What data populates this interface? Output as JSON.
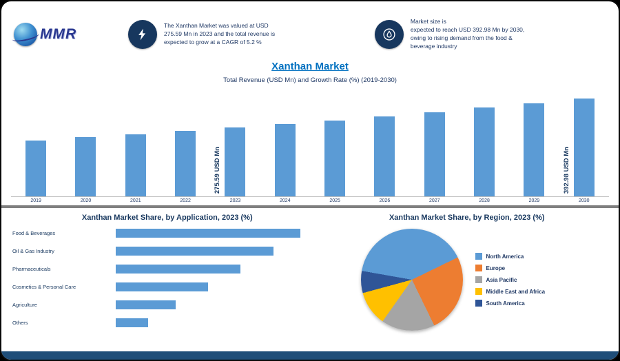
{
  "header": {
    "logo_text": "MMR",
    "callouts": [
      {
        "icon": "lightning-icon",
        "lines": [
          "The Xanthan Market was valued at USD",
          "275.59 Mn in 2023 and the total revenue is",
          "expected to grow at a CAGR of 5.2 %"
        ]
      },
      {
        "icon": "droplet-icon",
        "lines": [
          "Market size is",
          "expected to reach USD 392.98 Mn by 2030,",
          "owing to rising demand from the food &",
          "beverage industry"
        ]
      }
    ]
  },
  "title": {
    "main": "Xanthan Market",
    "subtitle": "Total Revenue (USD Mn) and Growth Rate (%) (2019-2030)"
  },
  "chart_data": [
    {
      "type": "bar",
      "title": "Xanthan Market Total Revenue (USD Mn)",
      "categories": [
        "2019",
        "2020",
        "2021",
        "2022",
        "2023",
        "2024",
        "2025",
        "2026",
        "2027",
        "2028",
        "2029",
        "2030"
      ],
      "values": [
        224.9,
        236.6,
        248.9,
        261.9,
        275.59,
        289.9,
        305.0,
        320.9,
        337.6,
        355.2,
        373.6,
        392.98
      ],
      "bar_color": "#5B9BD5",
      "ylim": [
        0,
        420
      ],
      "annotations": [
        {
          "index": 4,
          "text": "275.59 USD Mn"
        },
        {
          "index": 11,
          "text": "392.98 USD Mn"
        }
      ]
    },
    {
      "type": "bar",
      "orientation": "horizontal",
      "title": "Xanthan Market Share, by Application, 2023 (%)",
      "categories": [
        "Food & Beverages",
        "Oil & Gas Industry",
        "Pharmaceuticals",
        "Cosmetics & Personal Care",
        "Agriculture",
        "Others"
      ],
      "values": [
        34,
        29,
        23,
        17,
        11,
        6
      ],
      "bar_color": "#5B9BD5",
      "xlim": [
        0,
        38
      ]
    },
    {
      "type": "pie",
      "title": "Xanthan Market Share, by Region, 2023 (%)",
      "labels": [
        "North America",
        "Europe",
        "Asia Pacific",
        "Middle East and Africa",
        "South America"
      ],
      "values": [
        40,
        25,
        17,
        11,
        7
      ],
      "colors": [
        "#5B9BD5",
        "#ED7D31",
        "#A5A5A5",
        "#FFC000",
        "#2F5597"
      ],
      "start_angle_deg": -80,
      "legend_position": "right"
    }
  ]
}
